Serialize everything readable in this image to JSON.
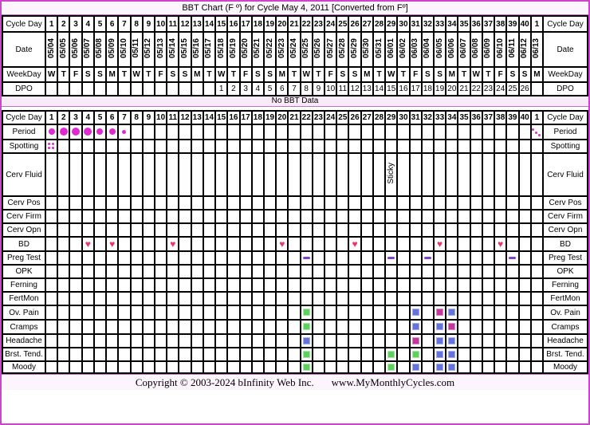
{
  "title": "BBT Chart (F º) for Cycle May 4, 2011  [Converted from Fº]",
  "no_data_label": "No BBT Data",
  "footer": {
    "copyright": "Copyright © 2003-2024 bInfinity Web Inc.",
    "website": "www.MyMonthlyCycles.com"
  },
  "colors": {
    "outer_border": "#CC44CC",
    "panel_bg": "#FDF5FD",
    "label_bg": "#FAEEFA",
    "header_cell_bg": "#F8F5E4",
    "banner_bg": "#F9EAF9",
    "separator": "#BB77BB",
    "period_dot": "#DF2AD2",
    "heart": "#E7386D",
    "preg_dash": "#8040C8",
    "square_green": "#5DD05D",
    "square_blue": "#6673DB",
    "square_magenta": "#C0399A"
  },
  "columns": {
    "count": 41,
    "cycle_days": [
      1,
      2,
      3,
      4,
      5,
      6,
      7,
      8,
      9,
      10,
      11,
      12,
      13,
      14,
      15,
      16,
      17,
      18,
      19,
      20,
      21,
      22,
      23,
      24,
      25,
      26,
      27,
      28,
      29,
      30,
      31,
      32,
      33,
      34,
      35,
      36,
      37,
      38,
      39,
      40,
      1
    ],
    "dates": [
      "05/04",
      "05/05",
      "05/06",
      "05/07",
      "05/08",
      "05/09",
      "05/10",
      "05/11",
      "05/12",
      "05/13",
      "05/14",
      "05/15",
      "05/16",
      "05/17",
      "05/18",
      "05/19",
      "05/20",
      "05/21",
      "05/22",
      "05/23",
      "05/24",
      "05/25",
      "05/26",
      "05/27",
      "05/28",
      "05/29",
      "05/30",
      "05/31",
      "06/01",
      "06/02",
      "06/03",
      "06/04",
      "06/05",
      "06/06",
      "06/07",
      "06/08",
      "06/09",
      "06/10",
      "06/11",
      "06/12",
      "06/13"
    ],
    "weekdays": [
      "W",
      "T",
      "F",
      "S",
      "S",
      "M",
      "T",
      "W",
      "T",
      "F",
      "S",
      "S",
      "M",
      "T",
      "W",
      "T",
      "F",
      "S",
      "S",
      "M",
      "T",
      "W",
      "T",
      "F",
      "S",
      "S",
      "M",
      "T",
      "W",
      "T",
      "F",
      "S",
      "S",
      "M",
      "T",
      "W",
      "T",
      "F",
      "S",
      "S",
      "M"
    ],
    "dpo": [
      "",
      "",
      "",
      "",
      "",
      "",
      "",
      "",
      "",
      "",
      "",
      "",
      "",
      "",
      1,
      2,
      3,
      4,
      5,
      6,
      7,
      8,
      9,
      10,
      11,
      12,
      13,
      14,
      15,
      16,
      17,
      18,
      19,
      20,
      21,
      22,
      23,
      24,
      25,
      26,
      ""
    ]
  },
  "header_rows": [
    {
      "id": "cycle-day",
      "label": "Cycle Day",
      "values_key": "cycle_days",
      "bold": true,
      "h": 20
    },
    {
      "id": "date",
      "label": "Date",
      "values_key": "dates",
      "rotated": true,
      "bold": true,
      "h": 44
    },
    {
      "id": "weekday",
      "label": "WeekDay",
      "values_key": "weekdays",
      "bold": true,
      "h": 19
    },
    {
      "id": "dpo",
      "label": "DPO",
      "values_key": "dpo",
      "h": 17
    }
  ],
  "tracking_rows": [
    {
      "id": "cycle-day-2",
      "label": "Cycle Day",
      "values_key": "cycle_days",
      "bold": true,
      "h": 17,
      "markers": []
    },
    {
      "id": "period",
      "label": "Period",
      "h": 19,
      "markers": [
        {
          "day": 1,
          "type": "dot",
          "size": "m"
        },
        {
          "day": 2,
          "type": "dot",
          "size": "l"
        },
        {
          "day": 3,
          "type": "dot",
          "size": "l"
        },
        {
          "day": 4,
          "type": "dot",
          "size": "l"
        },
        {
          "day": 5,
          "type": "dot",
          "size": "m"
        },
        {
          "day": 6,
          "type": "dot",
          "size": "m"
        },
        {
          "day": 7,
          "type": "dot",
          "size": "s"
        },
        {
          "day": 41,
          "type": "dots3"
        }
      ]
    },
    {
      "id": "spotting",
      "label": "Spotting",
      "h": 17,
      "markers": [
        {
          "day": 1,
          "type": "dots4"
        }
      ]
    },
    {
      "id": "cerv-fluid",
      "label": "Cerv Fluid",
      "h": 54,
      "markers": [
        {
          "day": 29,
          "type": "vtext",
          "text": "Sticky"
        }
      ]
    },
    {
      "id": "cerv-pos",
      "label": "Cerv Pos",
      "h": 17,
      "markers": []
    },
    {
      "id": "cerv-firm",
      "label": "Cerv Firm",
      "h": 17,
      "markers": []
    },
    {
      "id": "cerv-opn",
      "label": "Cerv Opn",
      "h": 17,
      "markers": []
    },
    {
      "id": "bd",
      "label": "BD",
      "h": 18,
      "markers": [
        {
          "day": 4,
          "type": "heart"
        },
        {
          "day": 6,
          "type": "heart"
        },
        {
          "day": 11,
          "type": "heart"
        },
        {
          "day": 20,
          "type": "heart"
        },
        {
          "day": 26,
          "type": "heart"
        },
        {
          "day": 33,
          "type": "heart"
        },
        {
          "day": 38,
          "type": "heart"
        }
      ]
    },
    {
      "id": "preg-test",
      "label": "Preg Test",
      "h": 17,
      "markers": [
        {
          "day": 22,
          "type": "dash"
        },
        {
          "day": 29,
          "type": "dash"
        },
        {
          "day": 32,
          "type": "dash"
        },
        {
          "day": 39,
          "type": "dash"
        }
      ]
    },
    {
      "id": "opk",
      "label": "OPK",
      "h": 17,
      "markers": []
    },
    {
      "id": "ferning",
      "label": "Ferning",
      "h": 17,
      "markers": []
    },
    {
      "id": "fertmon",
      "label": "FertMon",
      "h": 17,
      "markers": []
    },
    {
      "id": "ov-pain",
      "label": "Ov. Pain",
      "h": 18,
      "markers": [
        {
          "day": 22,
          "type": "square",
          "color": "green"
        },
        {
          "day": 31,
          "type": "square",
          "color": "blue"
        },
        {
          "day": 33,
          "type": "square",
          "color": "magenta"
        },
        {
          "day": 34,
          "type": "square",
          "color": "blue"
        }
      ]
    },
    {
      "id": "cramps",
      "label": "Cramps",
      "h": 18,
      "markers": [
        {
          "day": 22,
          "type": "square",
          "color": "green"
        },
        {
          "day": 31,
          "type": "square",
          "color": "blue"
        },
        {
          "day": 33,
          "type": "square",
          "color": "blue"
        },
        {
          "day": 34,
          "type": "square",
          "color": "magenta"
        }
      ]
    },
    {
      "id": "headache",
      "label": "Headache",
      "h": 17,
      "markers": [
        {
          "day": 22,
          "type": "square",
          "color": "blue"
        },
        {
          "day": 31,
          "type": "square",
          "color": "magenta"
        },
        {
          "day": 33,
          "type": "square",
          "color": "blue"
        },
        {
          "day": 34,
          "type": "square",
          "color": "blue"
        }
      ]
    },
    {
      "id": "brst-tend",
      "label": "Brst. Tend.",
      "h": 17,
      "markers": [
        {
          "day": 22,
          "type": "square",
          "color": "green"
        },
        {
          "day": 29,
          "type": "square",
          "color": "green"
        },
        {
          "day": 31,
          "type": "square",
          "color": "green"
        },
        {
          "day": 33,
          "type": "square",
          "color": "blue"
        },
        {
          "day": 34,
          "type": "square",
          "color": "blue"
        }
      ]
    },
    {
      "id": "moody",
      "label": "Moody",
      "h": 15,
      "markers": [
        {
          "day": 22,
          "type": "square",
          "color": "green"
        },
        {
          "day": 29,
          "type": "square",
          "color": "green"
        },
        {
          "day": 31,
          "type": "square",
          "color": "blue"
        },
        {
          "day": 33,
          "type": "square",
          "color": "blue"
        },
        {
          "day": 34,
          "type": "square",
          "color": "blue"
        }
      ]
    }
  ],
  "chart_data": {
    "type": "table",
    "title": "BBT Chart (F º) for Cycle May 4, 2011 [Converted from Fº]",
    "note": "No BBT Data",
    "cycle_start_date": "05/04",
    "next_cycle_start_date": "06/13",
    "cycle_length_days": 40,
    "dpo_range": [
      1,
      26
    ],
    "dpo_starts_on_cycle_day": 15,
    "events": {
      "period_flow": [
        {
          "day": 1,
          "flow": "medium"
        },
        {
          "day": 2,
          "flow": "heavy"
        },
        {
          "day": 3,
          "flow": "heavy"
        },
        {
          "day": 4,
          "flow": "heavy"
        },
        {
          "day": 5,
          "flow": "medium"
        },
        {
          "day": 6,
          "flow": "medium"
        },
        {
          "day": 7,
          "flow": "light"
        },
        {
          "day": 41,
          "flow": "very-light"
        }
      ],
      "spotting_days": [
        1
      ],
      "cervical_fluid": [
        {
          "day": 29,
          "value": "Sticky"
        }
      ],
      "bd_days": [
        4,
        6,
        11,
        20,
        26,
        33,
        38
      ],
      "preg_test_negative_days": [
        22,
        29,
        32,
        39
      ],
      "symptoms": {
        "ov_pain": [
          {
            "day": 22,
            "level": "green"
          },
          {
            "day": 31,
            "level": "blue"
          },
          {
            "day": 33,
            "level": "magenta"
          },
          {
            "day": 34,
            "level": "blue"
          }
        ],
        "cramps": [
          {
            "day": 22,
            "level": "green"
          },
          {
            "day": 31,
            "level": "blue"
          },
          {
            "day": 33,
            "level": "blue"
          },
          {
            "day": 34,
            "level": "magenta"
          }
        ],
        "headache": [
          {
            "day": 22,
            "level": "blue"
          },
          {
            "day": 31,
            "level": "magenta"
          },
          {
            "day": 33,
            "level": "blue"
          },
          {
            "day": 34,
            "level": "blue"
          }
        ],
        "brst_tend": [
          {
            "day": 22,
            "level": "green"
          },
          {
            "day": 29,
            "level": "green"
          },
          {
            "day": 31,
            "level": "green"
          },
          {
            "day": 33,
            "level": "blue"
          },
          {
            "day": 34,
            "level": "blue"
          }
        ],
        "moody": [
          {
            "day": 22,
            "level": "green"
          },
          {
            "day": 29,
            "level": "green"
          },
          {
            "day": 31,
            "level": "blue"
          },
          {
            "day": 33,
            "level": "blue"
          },
          {
            "day": 34,
            "level": "blue"
          }
        ]
      }
    }
  }
}
